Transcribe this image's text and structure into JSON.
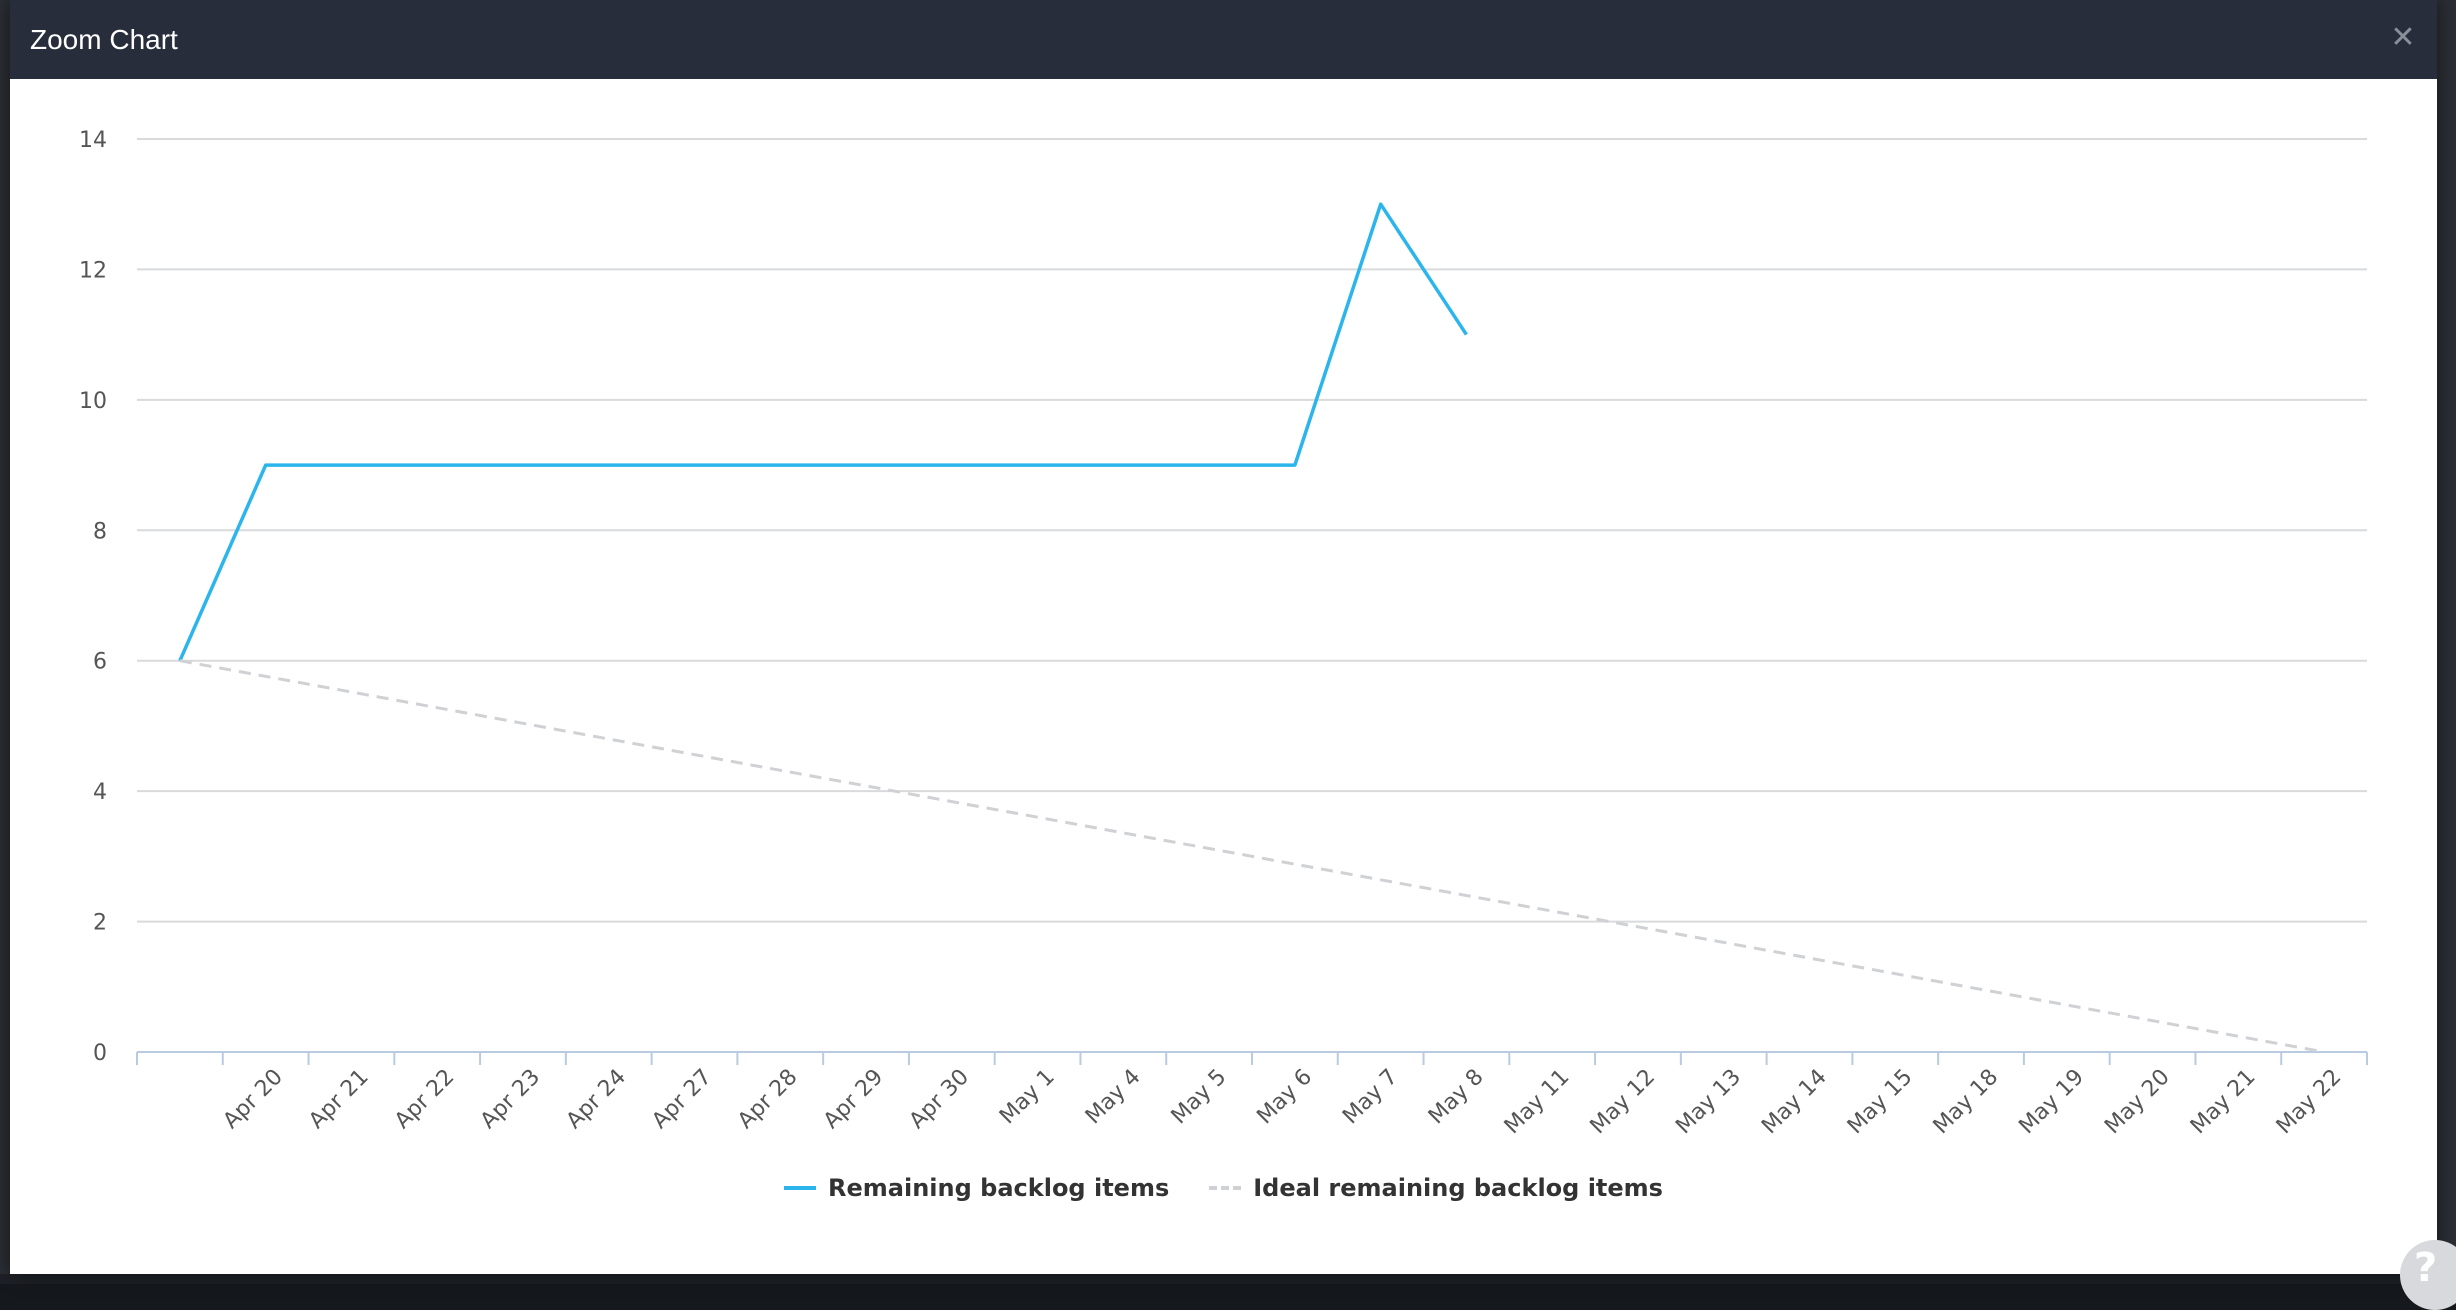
{
  "modal": {
    "title": "Zoom Chart",
    "close_icon": "close-icon"
  },
  "help": {
    "icon": "help-icon",
    "glyph": "?"
  },
  "chart_data": {
    "type": "line",
    "categories": [
      "",
      "Apr 20",
      "Apr 21",
      "Apr 22",
      "Apr 23",
      "Apr 24",
      "Apr 27",
      "Apr 28",
      "Apr 29",
      "Apr 30",
      "May 1",
      "May 4",
      "May 5",
      "May 6",
      "May 7",
      "May 8",
      "May 11",
      "May 12",
      "May 13",
      "May 14",
      "May 15",
      "May 18",
      "May 19",
      "May 20",
      "May 21",
      "May 22"
    ],
    "yticks": [
      0,
      2,
      4,
      6,
      8,
      10,
      12,
      14
    ],
    "ylim": [
      0,
      14
    ],
    "grid": true,
    "legend_position": "bottom-center",
    "series": [
      {
        "name": "Remaining backlog items",
        "color": "#2cb5ec",
        "style": "solid",
        "values": [
          6,
          9,
          9,
          9,
          9,
          9,
          9,
          9,
          9,
          9,
          9,
          9,
          9,
          9,
          13,
          11,
          null,
          null,
          null,
          null,
          null,
          null,
          null,
          null,
          null,
          null
        ]
      },
      {
        "name": "Ideal remaining backlog items",
        "color": "#cfd1d4",
        "style": "dashed",
        "values": [
          6,
          5.76,
          5.52,
          5.28,
          5.04,
          4.8,
          4.56,
          4.32,
          4.08,
          3.84,
          3.6,
          3.36,
          3.12,
          2.88,
          2.64,
          2.4,
          2.16,
          1.92,
          1.68,
          1.44,
          1.2,
          0.96,
          0.72,
          0.48,
          0.24,
          0
        ]
      }
    ]
  }
}
